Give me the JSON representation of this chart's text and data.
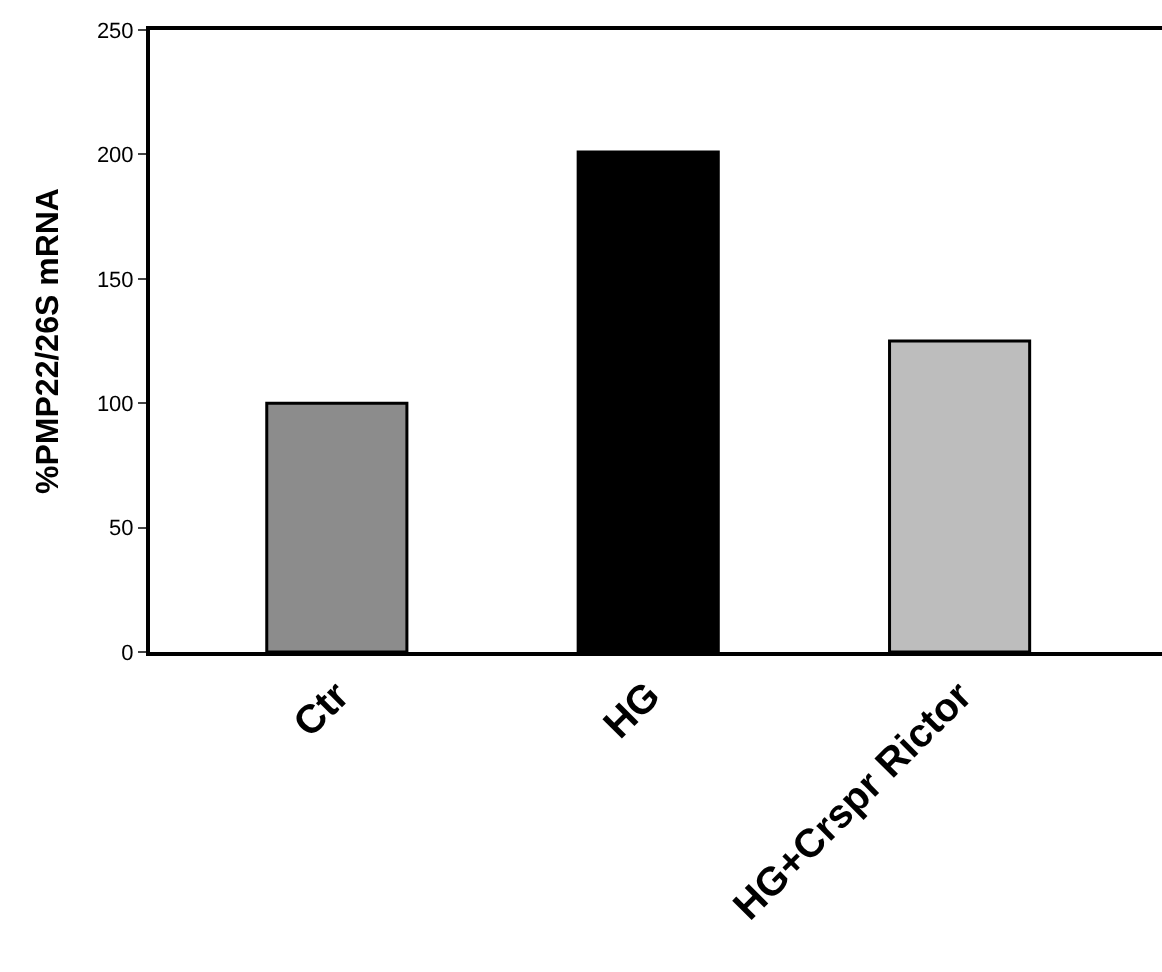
{
  "chart_data": {
    "type": "bar",
    "ylabel": "%PMP22/26S mRNA",
    "categories": [
      "Ctr",
      "HG",
      "HG+Crspr Rictor"
    ],
    "values": [
      100,
      201,
      125
    ],
    "colors": [
      "#8c8c8c",
      "#000000",
      "#bdbdbd"
    ],
    "ylim": [
      0,
      250
    ],
    "yticks": [
      0,
      50,
      100,
      150,
      200,
      250
    ],
    "legend": false
  }
}
